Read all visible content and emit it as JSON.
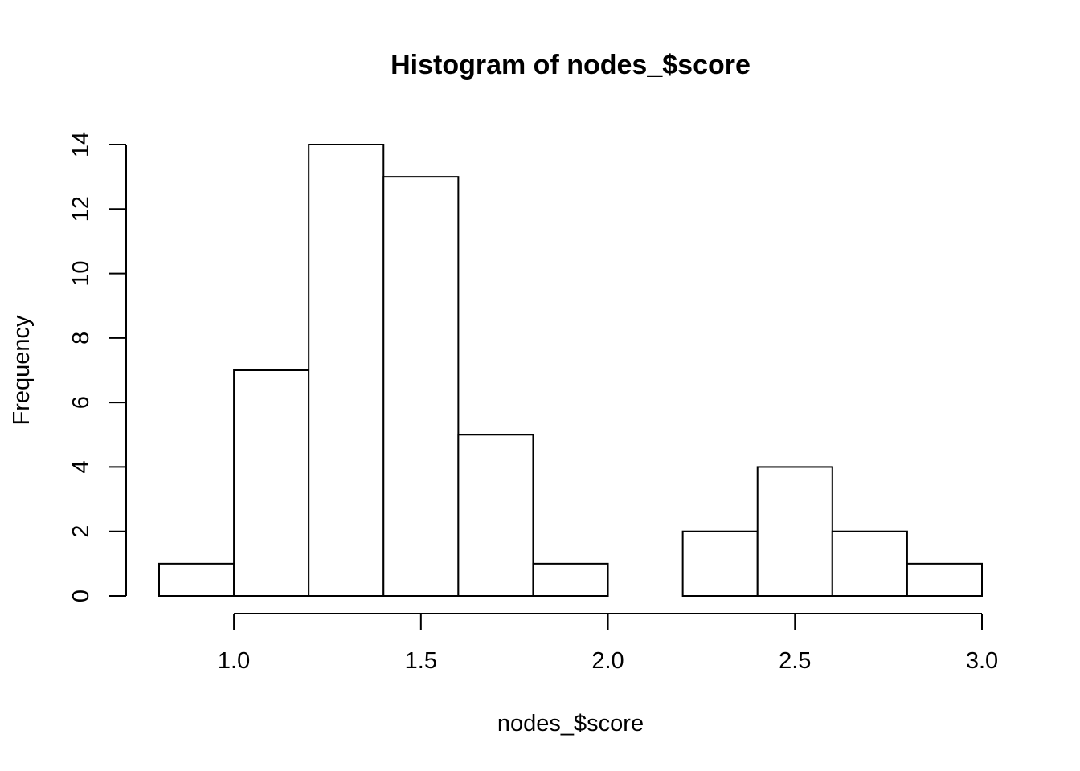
{
  "chart_data": {
    "type": "histogram",
    "title": "Histogram of nodes_$score",
    "xlabel": "nodes_$score",
    "ylabel": "Frequency",
    "bins": [
      {
        "start": 0.8,
        "end": 1.0,
        "count": 1
      },
      {
        "start": 1.0,
        "end": 1.2,
        "count": 7
      },
      {
        "start": 1.2,
        "end": 1.4,
        "count": 14
      },
      {
        "start": 1.4,
        "end": 1.6,
        "count": 13
      },
      {
        "start": 1.6,
        "end": 1.8,
        "count": 5
      },
      {
        "start": 1.8,
        "end": 2.0,
        "count": 1
      },
      {
        "start": 2.0,
        "end": 2.2,
        "count": 0
      },
      {
        "start": 2.2,
        "end": 2.4,
        "count": 2
      },
      {
        "start": 2.4,
        "end": 2.6,
        "count": 4
      },
      {
        "start": 2.6,
        "end": 2.8,
        "count": 2
      },
      {
        "start": 2.8,
        "end": 3.0,
        "count": 1
      }
    ],
    "x_ticks": [
      1.0,
      1.5,
      2.0,
      2.5,
      3.0
    ],
    "x_tick_labels": [
      "1.0",
      "1.5",
      "2.0",
      "2.5",
      "3.0"
    ],
    "y_ticks": [
      0,
      2,
      4,
      6,
      8,
      10,
      12,
      14
    ],
    "y_tick_labels": [
      "0",
      "2",
      "4",
      "6",
      "8",
      "10",
      "12",
      "14"
    ],
    "xlim": [
      0.8,
      3.0
    ],
    "ylim": [
      0,
      14
    ],
    "grid": false,
    "bar_fill": "#ffffff",
    "bar_stroke": "#000000"
  }
}
